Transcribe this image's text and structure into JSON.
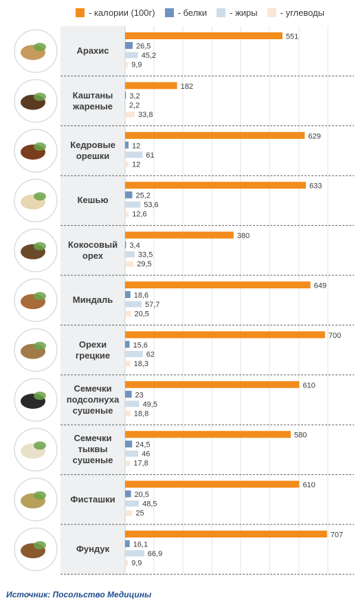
{
  "legend": {
    "calories": "- калории (100г)",
    "protein": "- белки",
    "fat": "- жиры",
    "carbs": "- углеводы"
  },
  "colors": {
    "calories": "#f28c1c",
    "protein": "#6f93bf",
    "fat": "#cfdcea",
    "carbs": "#fbe6d4",
    "label_panel": "#eef0f2",
    "divider": "#606060"
  },
  "source": "Источник: Посольство Медицины",
  "chart_data": {
    "type": "bar",
    "orientation": "horizontal",
    "categories": [
      "Арахис",
      "Каштаны\nжареные",
      "Кедровые\nорешки",
      "Кешью",
      "Кокосовый\nорех",
      "Миндаль",
      "Орехи\nгрецкие",
      "Семечки\nподсолнуха\nсушеные",
      "Семечки\nтыквы\nсушеные",
      "Фисташки",
      "Фундук"
    ],
    "icons": [
      "peanut-icon",
      "chestnut-icon",
      "pine-nut-icon",
      "cashew-icon",
      "coconut-icon",
      "almond-icon",
      "walnut-icon",
      "sunflower-seed-icon",
      "pumpkin-seed-icon",
      "pistachio-icon",
      "hazelnut-icon"
    ],
    "series": [
      {
        "name": "- калории (100г)",
        "key": "calories",
        "values": [
          551,
          182,
          629,
          633,
          380,
          649,
          700,
          610,
          580,
          610,
          707
        ]
      },
      {
        "name": "- белки",
        "key": "protein",
        "values": [
          26.5,
          3.2,
          12,
          25.2,
          3.4,
          18.6,
          15.6,
          23,
          24.5,
          20.5,
          16.1
        ]
      },
      {
        "name": "- жиры",
        "key": "fat",
        "values": [
          45.2,
          2.2,
          61,
          53.6,
          33.5,
          57.7,
          62,
          49.5,
          46,
          48.5,
          66.9
        ]
      },
      {
        "name": "- углеводы",
        "key": "carbs",
        "values": [
          9.9,
          33.8,
          12,
          12.6,
          29.5,
          20.5,
          18.3,
          18.8,
          17.8,
          25,
          9.9
        ]
      }
    ],
    "value_labels": [
      [
        "551",
        "26,5",
        "45,2",
        "9,9"
      ],
      [
        "182",
        "3,2",
        "2,2",
        "33,8"
      ],
      [
        "629",
        "12",
        "61",
        "12"
      ],
      [
        "633",
        "25,2",
        "53,6",
        "12,6"
      ],
      [
        "380",
        "3,4",
        "33,5",
        "29,5"
      ],
      [
        "649",
        "18,6",
        "57,7",
        "20,5"
      ],
      [
        "700",
        "15,6",
        "62",
        "18,3"
      ],
      [
        "610",
        "23",
        "49,5",
        "18,8"
      ],
      [
        "580",
        "24,5",
        "46",
        "17,8"
      ],
      [
        "610",
        "20,5",
        "48,5",
        "25"
      ],
      [
        "707",
        "16,1",
        "66,9",
        "9,9"
      ]
    ],
    "xlim": [
      0,
      710
    ],
    "grid": true,
    "legend_position": "top"
  }
}
